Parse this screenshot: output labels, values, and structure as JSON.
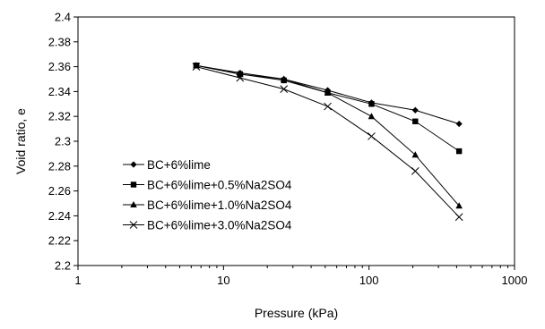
{
  "chart_data": {
    "type": "line",
    "title": "",
    "xlabel": "Pressure (kPa)",
    "ylabel": "Void ratio, e",
    "xscale": "log",
    "xlim": [
      1,
      1000
    ],
    "ylim": [
      2.2,
      2.4
    ],
    "x_ticks": [
      1,
      10,
      100,
      1000
    ],
    "x_tick_labels": [
      "1",
      "10",
      "100",
      "1000"
    ],
    "y_ticks": [
      2.2,
      2.22,
      2.24,
      2.26,
      2.28,
      2.3,
      2.32,
      2.34,
      2.36,
      2.38,
      2.4
    ],
    "y_tick_labels": [
      "2.2",
      "2.22",
      "2.24",
      "2.26",
      "2.28",
      "2.3",
      "2.32",
      "2.34",
      "2.36",
      "2.38",
      "2.4"
    ],
    "grid": false,
    "legend_position": "center-left",
    "series": [
      {
        "name": "BC+6%lime",
        "marker": "diamond",
        "x": [
          6.5,
          13,
          26,
          52,
          104,
          208,
          416
        ],
        "values": [
          2.361,
          2.355,
          2.35,
          2.341,
          2.331,
          2.325,
          2.314
        ]
      },
      {
        "name": "BC+6%lime+0.5%Na2SO4",
        "marker": "square",
        "x": [
          6.5,
          13,
          26,
          52,
          104,
          208,
          416
        ],
        "values": [
          2.361,
          2.354,
          2.349,
          2.339,
          2.33,
          2.316,
          2.292
        ]
      },
      {
        "name": "BC+6%lime+1.0%Na2SO4",
        "marker": "triangle",
        "x": [
          6.5,
          13,
          26,
          52,
          104,
          208,
          416
        ],
        "values": [
          2.361,
          2.354,
          2.35,
          2.339,
          2.32,
          2.289,
          2.248
        ]
      },
      {
        "name": "BC+6%lime+3.0%Na2SO4",
        "marker": "x",
        "x": [
          6.5,
          13,
          26,
          52,
          104,
          208,
          416
        ],
        "values": [
          2.36,
          2.351,
          2.342,
          2.328,
          2.304,
          2.276,
          2.239
        ]
      }
    ]
  }
}
